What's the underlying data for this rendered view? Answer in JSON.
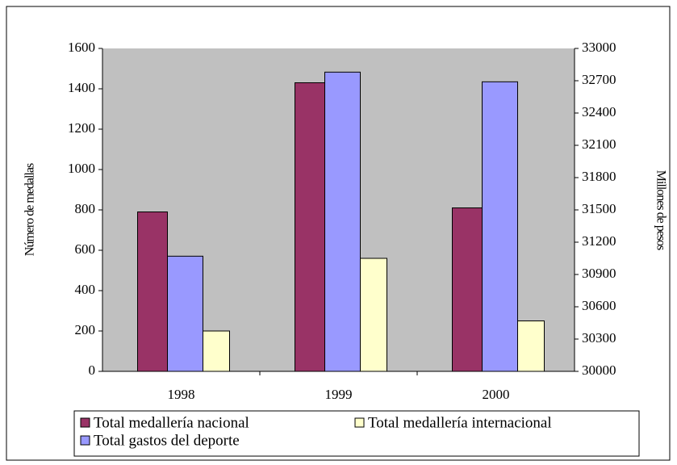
{
  "chart_data": {
    "type": "bar",
    "categories": [
      "1998",
      "1999",
      "2000"
    ],
    "series": [
      {
        "name": "Total medallería nacional",
        "color": "#993366",
        "values": [
          790,
          1430,
          810
        ]
      },
      {
        "name": "Total gastos del deporte",
        "color": "#9999FF",
        "values": [
          31070,
          32780,
          32690
        ],
        "axis": "y2"
      },
      {
        "name": "Total medallería internacional",
        "color": "#FFFFCC",
        "values": [
          200,
          560,
          250
        ]
      }
    ],
    "y_label": "Número de medallas",
    "y2_label": "Millones de pesos",
    "ylim": [
      0,
      1600
    ],
    "yticks": [
      0,
      200,
      400,
      600,
      800,
      1000,
      1200,
      1400,
      1600
    ],
    "y2lim": [
      30000,
      33000
    ],
    "y2ticks": [
      30000,
      30300,
      30600,
      30900,
      31200,
      31500,
      31800,
      32100,
      32400,
      32700,
      33000
    ],
    "plot_background": "#C0C0C0",
    "legend": "bottom"
  }
}
